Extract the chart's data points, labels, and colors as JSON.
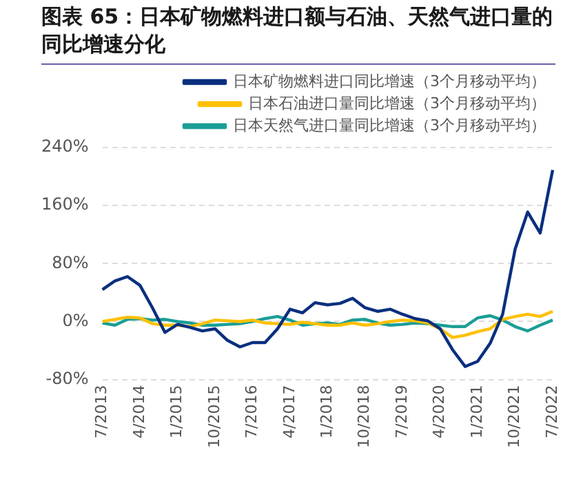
{
  "chart_data": {
    "type": "line",
    "title": "图表 65：日本矿物燃料进口额与石油、天然气进口量的同比增速分化",
    "categories": [
      "7/2013",
      null,
      null,
      "4/2014",
      null,
      null,
      "1/2015",
      null,
      null,
      "10/2015",
      null,
      null,
      "7/2016",
      null,
      null,
      "4/2017",
      null,
      null,
      "1/2018",
      null,
      null,
      "10/2018",
      null,
      null,
      "7/2019",
      null,
      null,
      "4/2020",
      null,
      null,
      "1/2021",
      null,
      null,
      "10/2021",
      null,
      null,
      "7/2022"
    ],
    "series": [
      {
        "name": "日本矿物燃料进口同比增速（3个月移动平均）",
        "color": "#0a2f7f",
        "values": [
          44,
          56,
          62,
          50,
          19,
          -15,
          -4,
          -8,
          -13,
          -10,
          -26,
          -35,
          -29,
          -29,
          -10,
          17,
          12,
          26,
          23,
          25,
          32,
          19,
          14,
          17,
          10,
          4,
          1,
          -10,
          -39,
          -62,
          -55,
          -30,
          10,
          100,
          151,
          122,
          209
        ]
      },
      {
        "name": "日本石油进口量同比增速（3个月移动平均）",
        "color": "#ffc000",
        "values": [
          0,
          3,
          6,
          5,
          -3,
          -5,
          -5,
          -7,
          -3,
          2,
          1,
          0,
          2,
          -2,
          -3,
          -4,
          -1,
          -3,
          -5,
          -5,
          -2,
          -5,
          -3,
          0,
          2,
          1,
          -2,
          -10,
          -22,
          -19,
          -14,
          -10,
          3,
          7,
          10,
          7,
          14
        ]
      },
      {
        "name": "日本天然气进口量同比增速（3个月移动平均）",
        "color": "#1a9e96",
        "values": [
          -2,
          -5,
          3,
          4,
          2,
          3,
          0,
          -2,
          -5,
          -5,
          -4,
          -3,
          0,
          4,
          7,
          2,
          -5,
          -3,
          -2,
          -4,
          2,
          3,
          -2,
          -5,
          -4,
          -2,
          -3,
          -5,
          -7,
          -7,
          5,
          8,
          2,
          -7,
          -13,
          -5,
          2
        ]
      }
    ],
    "ylim": [
      -80,
      240
    ],
    "yticks": [
      {
        "value": -80,
        "label": "-80%"
      },
      {
        "value": 0,
        "label": "0%"
      },
      {
        "value": 80,
        "label": "80%"
      },
      {
        "value": 160,
        "label": "160%"
      },
      {
        "value": 240,
        "label": "240%"
      }
    ],
    "grid": "y",
    "legend": "top",
    "marker": "none",
    "line_style": "solid"
  }
}
